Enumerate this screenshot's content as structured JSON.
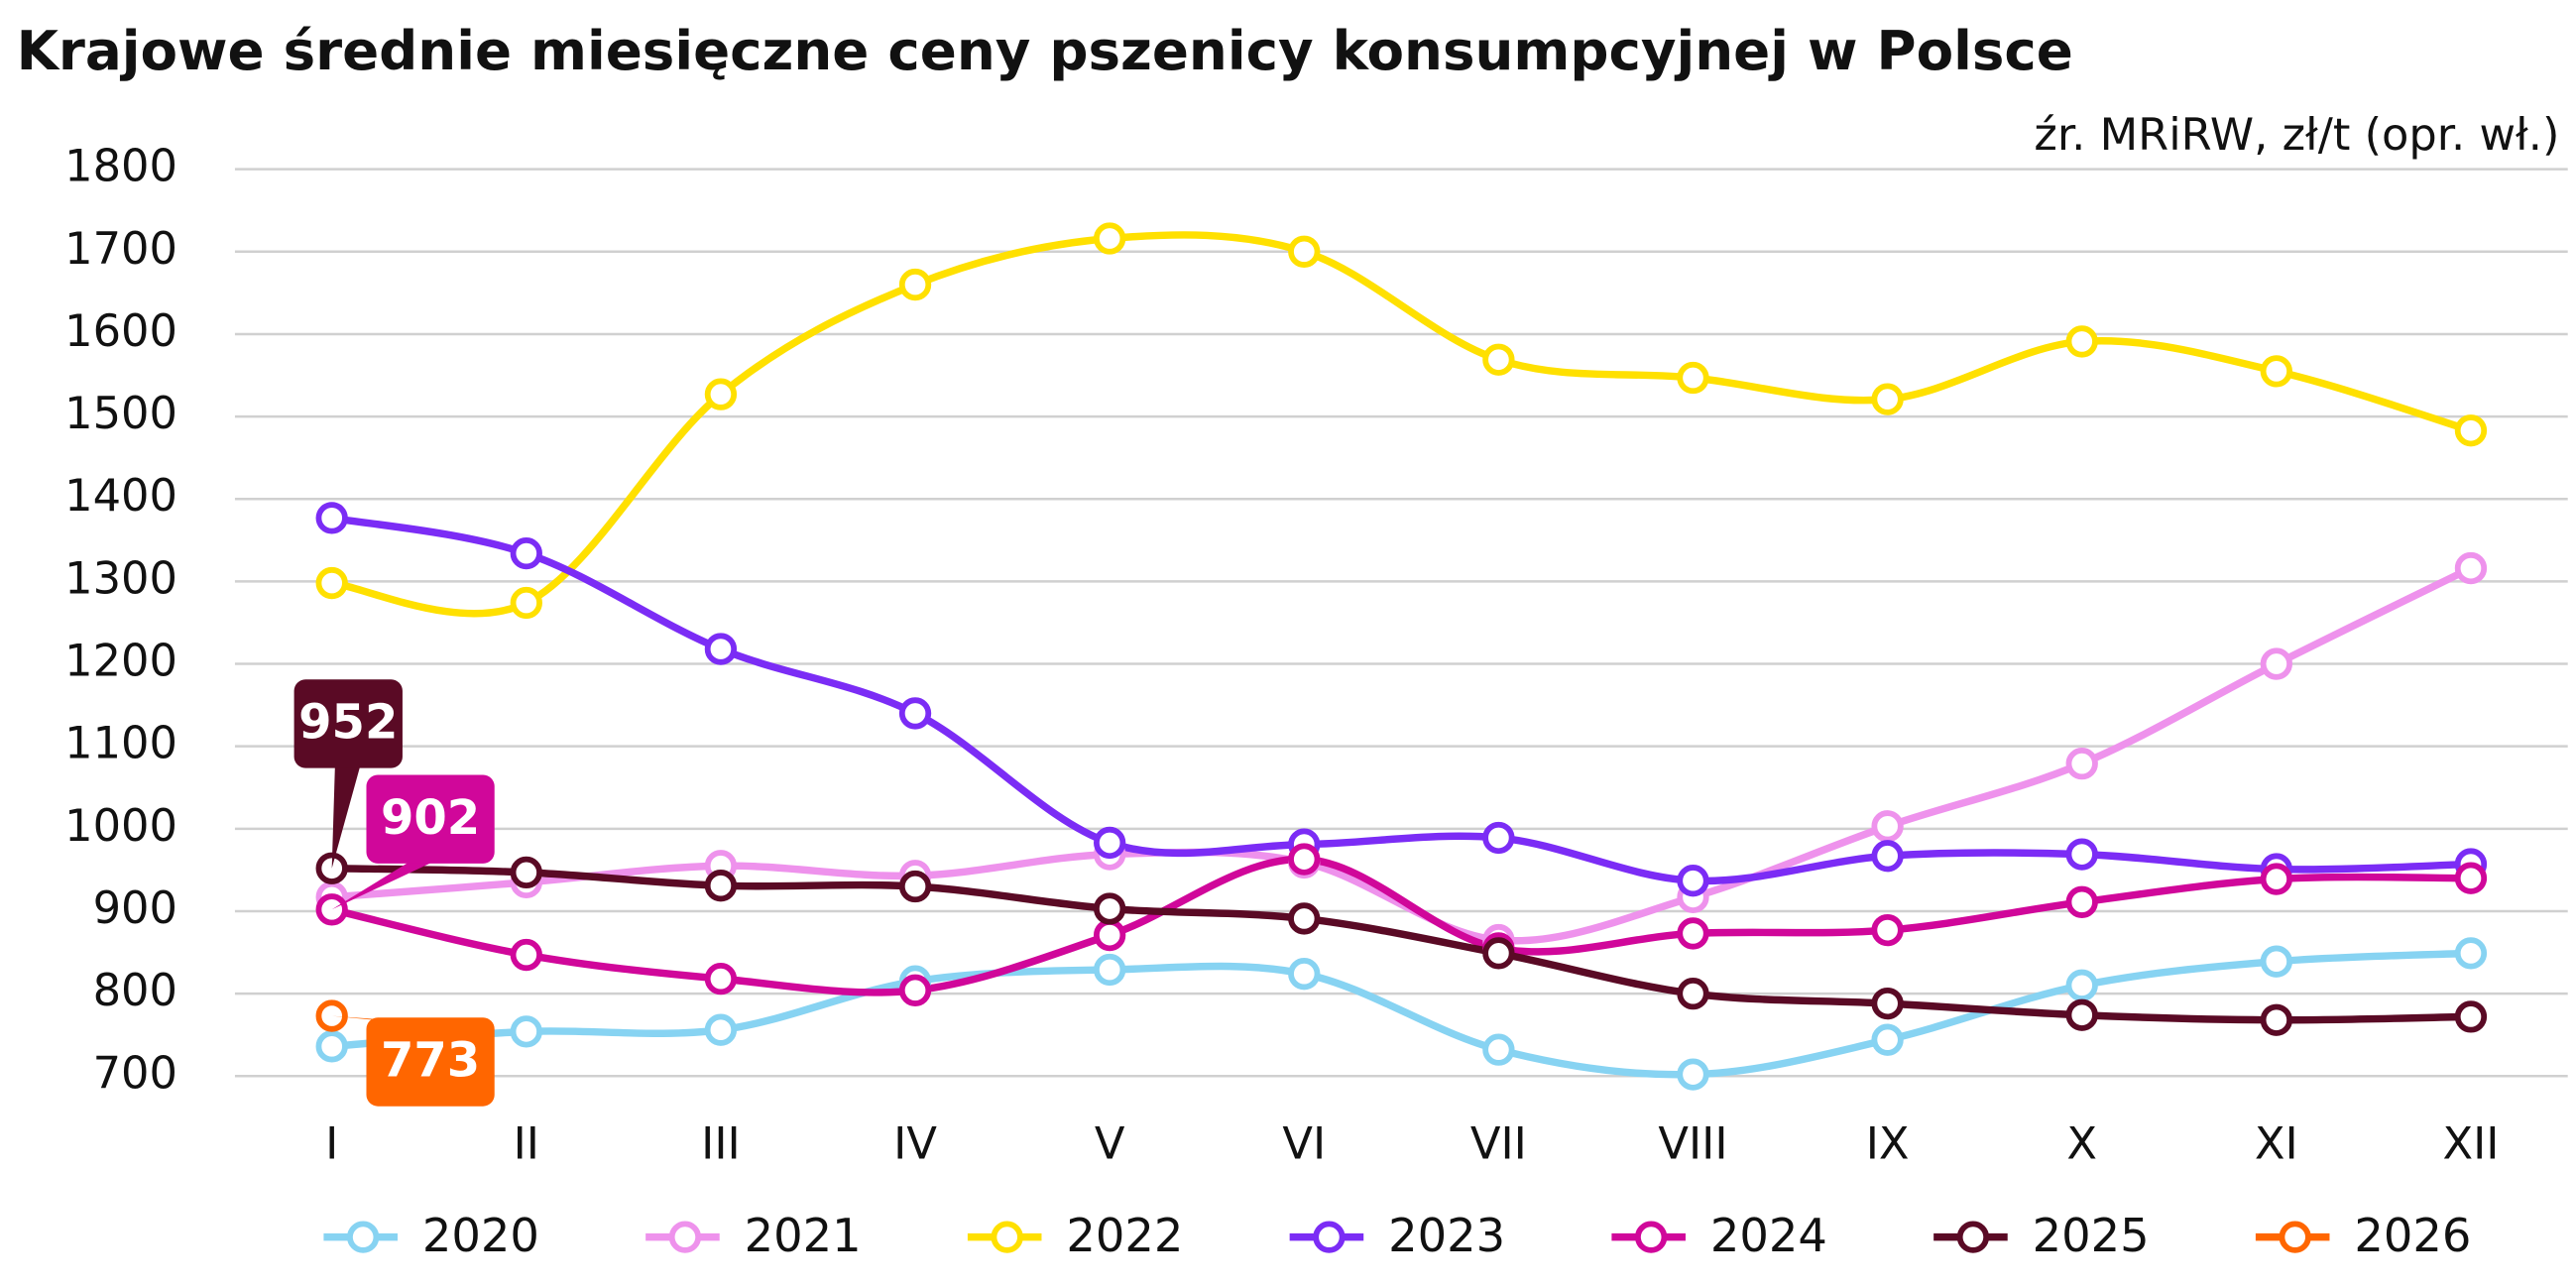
{
  "chart_data": {
    "type": "line",
    "title": "Krajowe średnie miesięczne ceny pszenicy konsumpcyjnej w Polsce",
    "subtitle": "źr. MRiRW, zł/t (opr. wł.)",
    "categories": [
      "I",
      "II",
      "III",
      "IV",
      "V",
      "VI",
      "VII",
      "VIII",
      "IX",
      "X",
      "XI",
      "XII"
    ],
    "ylim": [
      700,
      1800
    ],
    "yticks": [
      700,
      800,
      900,
      1000,
      1100,
      1200,
      1300,
      1400,
      1500,
      1600,
      1700,
      1800
    ],
    "grid": true,
    "legend": "bottom",
    "series": [
      {
        "name": "2020",
        "color": "#87d3f2",
        "values": [
          736,
          754,
          756,
          815,
          829,
          824,
          732,
          702,
          744,
          810,
          839,
          849
        ]
      },
      {
        "name": "2021",
        "color": "#ee92ec",
        "values": [
          917,
          935,
          955,
          943,
          969,
          959,
          865,
          917,
          1003,
          1079,
          1200,
          1316
        ]
      },
      {
        "name": "2022",
        "color": "#ffe000",
        "values": [
          1298,
          1274,
          1527,
          1660,
          1716,
          1700,
          1569,
          1547,
          1521,
          1591,
          1555,
          1483
        ]
      },
      {
        "name": "2023",
        "color": "#7b2cf5",
        "values": [
          1377,
          1334,
          1218,
          1140,
          983,
          981,
          989,
          937,
          967,
          969,
          951,
          957
        ]
      },
      {
        "name": "2024",
        "color": "#d0079a",
        "values": [
          902,
          847,
          818,
          804,
          871,
          963,
          855,
          873,
          877,
          911,
          939,
          940
        ],
        "labels_at": [
          0
        ]
      },
      {
        "name": "2025",
        "color": "#5a0a25",
        "values": [
          952,
          947,
          931,
          930,
          903,
          891,
          849,
          800,
          788,
          774,
          768,
          772
        ],
        "labels_at": [
          0
        ]
      },
      {
        "name": "2026",
        "color": "#ff6600",
        "values": [
          773,
          null,
          null,
          null,
          null,
          null,
          null,
          null,
          null,
          null,
          null,
          null
        ],
        "labels_at": [
          0
        ]
      }
    ]
  }
}
